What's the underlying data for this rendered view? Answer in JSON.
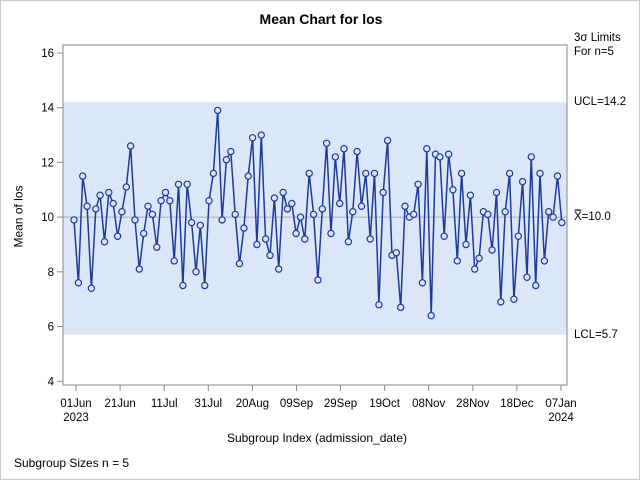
{
  "title": "Mean Chart for los",
  "footnote": "Subgroup Sizes   n = 5",
  "annotations": {
    "sigma_line1": "3σ Limits",
    "sigma_line2": "For n=5",
    "ucl_label": "UCL=14.2",
    "center_label": "X̿=10.0",
    "lcl_label": "LCL=5.7"
  },
  "chart_data": {
    "type": "line",
    "title": "Mean Chart for los",
    "xlabel": "Subgroup Index (admission_date)",
    "ylabel": "Mean of los",
    "ylim": [
      3.9,
      16.2
    ],
    "grid": "center line only",
    "y_ticks": [
      16,
      14,
      12,
      10,
      8,
      6,
      4
    ],
    "x_ticks": [
      {
        "label": "01Jun",
        "sub": "2023"
      },
      {
        "label": "21Jun"
      },
      {
        "label": "11Jul"
      },
      {
        "label": "31Jul"
      },
      {
        "label": "20Aug"
      },
      {
        "label": "09Sep"
      },
      {
        "label": "29Sep"
      },
      {
        "label": "19Oct"
      },
      {
        "label": "08Nov"
      },
      {
        "label": "28Nov"
      },
      {
        "label": "18Dec"
      },
      {
        "label": "07Jan",
        "sub": "2024"
      }
    ],
    "ucl": 14.2,
    "center": 10.0,
    "lcl": 5.7,
    "subgroup_size": 5,
    "values": [
      9.9,
      7.6,
      11.5,
      10.4,
      7.4,
      10.3,
      10.8,
      9.1,
      10.9,
      10.5,
      9.3,
      10.2,
      11.1,
      12.6,
      9.9,
      8.1,
      9.4,
      10.4,
      10.1,
      8.9,
      10.6,
      10.9,
      10.6,
      8.4,
      11.2,
      7.5,
      11.2,
      9.8,
      8.0,
      9.7,
      7.5,
      10.6,
      11.6,
      13.9,
      9.9,
      12.1,
      12.4,
      10.1,
      8.3,
      9.6,
      11.5,
      12.9,
      9.0,
      13.0,
      9.2,
      8.6,
      10.7,
      8.1,
      10.9,
      10.3,
      10.5,
      9.4,
      10.0,
      9.2,
      11.6,
      10.1,
      7.7,
      10.3,
      12.7,
      9.4,
      12.2,
      10.5,
      12.5,
      9.1,
      10.2,
      12.4,
      10.4,
      11.6,
      9.2,
      11.6,
      6.8,
      10.9,
      12.8,
      8.6,
      8.7,
      6.7,
      10.4,
      10.0,
      10.1,
      11.2,
      7.6,
      12.5,
      6.4,
      12.3,
      12.2,
      9.3,
      12.3,
      11.0,
      8.4,
      11.6,
      9.0,
      10.8,
      8.1,
      8.5,
      10.2,
      10.1,
      8.8,
      10.9,
      6.9,
      10.2,
      11.6,
      7.0,
      9.3,
      11.3,
      7.8,
      12.2,
      7.5,
      11.6,
      8.4,
      10.2,
      10.0,
      11.5,
      9.8
    ],
    "colors": {
      "line": "#1e3a9b",
      "marker_fill": "#d9e4f4",
      "band": "#dbe7f8",
      "center_line": "#a9b1bd",
      "axis": "#8a8a8a"
    }
  }
}
